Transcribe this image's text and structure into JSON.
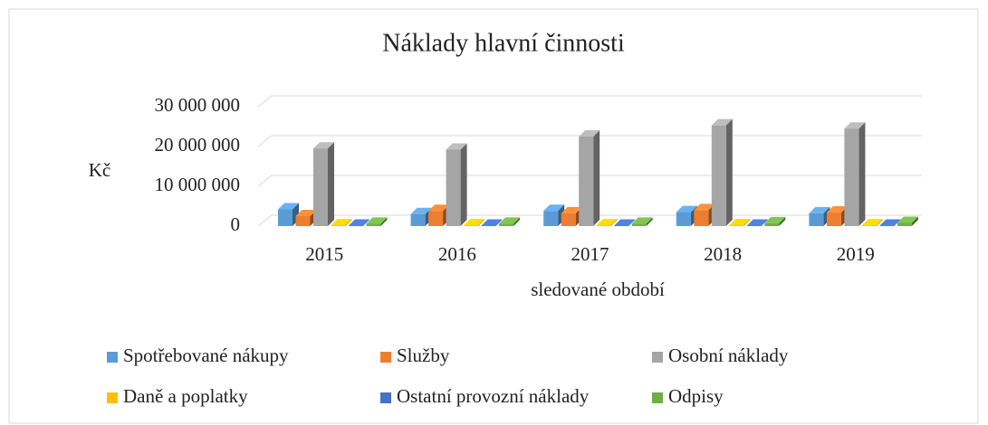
{
  "chart_data": {
    "type": "bar3d",
    "title": "Náklady hlavní činnosti",
    "y_label": "Kč",
    "x_label": "sledované období",
    "categories": [
      "2015",
      "2016",
      "2017",
      "2018",
      "2019"
    ],
    "series": [
      {
        "name": "Spotřebované nákupy",
        "color": "#5b9bd5",
        "values": [
          4200000,
          3000000,
          3800000,
          3500000,
          3200000
        ]
      },
      {
        "name": "Služby",
        "color": "#ed7d31",
        "values": [
          2500000,
          3800000,
          3200000,
          4000000,
          3400000
        ]
      },
      {
        "name": "Osobní náklady",
        "color": "#a5a5a5",
        "values": [
          19500000,
          19200000,
          22500000,
          25300000,
          24500000
        ]
      },
      {
        "name": "Daně a poplatky",
        "color": "#ffc000",
        "values": [
          200000,
          200000,
          200000,
          200000,
          200000
        ]
      },
      {
        "name": "Ostatní provozní náklady",
        "color": "#4472c4",
        "values": [
          100000,
          100000,
          100000,
          100000,
          100000
        ]
      },
      {
        "name": "Odpisy",
        "color": "#70ad47",
        "values": [
          600000,
          600000,
          600000,
          700000,
          800000
        ]
      }
    ],
    "ylim": [
      0,
      30000000
    ],
    "yticks": [
      0,
      {
        "value": 10000000,
        "label": "10 000 000"
      },
      {
        "value": 20000000,
        "label": "20 000 000"
      },
      {
        "value": 30000000,
        "label": "30 000 000"
      }
    ],
    "grid": true,
    "legend": "bottom"
  }
}
